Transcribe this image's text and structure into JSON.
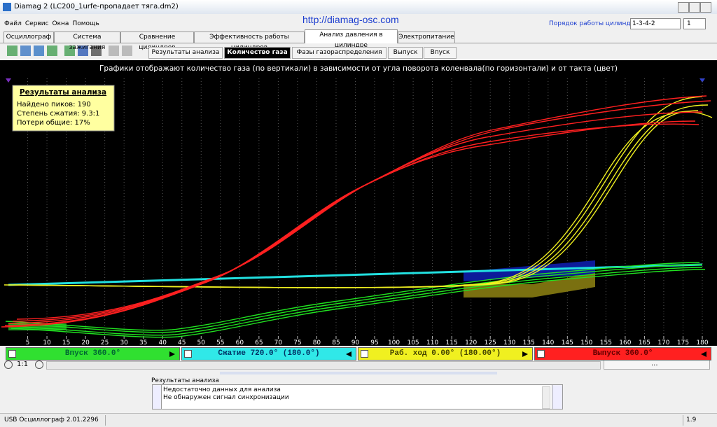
{
  "window": {
    "title": "Diamag 2 (LC200_1urfe-пропадает тяга.dm2)"
  },
  "menu": [
    "Файл",
    "Сервис",
    "Окна",
    "Помощь"
  ],
  "url": "http://diamag-osc.com",
  "cylinder_order": {
    "label": "Порядок работы цилиндров",
    "value": "1-3-4-2",
    "spin": "1"
  },
  "tabs": [
    "Осциллограф",
    "Система зажигания",
    "Сравнение цилиндров",
    "Эффективность работы цилиндров",
    "Анализ давления в цилиндре",
    "Электропитание"
  ],
  "subtabs": [
    "Результаты анализа",
    "Количество газа",
    "Фазы газораспределения",
    "Выпуск",
    "Впуск"
  ],
  "plot": {
    "caption": "Графики отображают количество газа (по вертикали) в зависимости от угла поворота коленвала(по горизонтали) и от такта (цвет)",
    "info": {
      "title": "Результаты анализа",
      "lines": [
        "Найдено пиков: 190",
        "Степень сжатия: 9.3:1",
        "Потери общие: 17%"
      ]
    },
    "xlim": [
      0,
      180
    ],
    "xticks": [
      5,
      10,
      15,
      20,
      25,
      30,
      35,
      40,
      45,
      50,
      55,
      60,
      65,
      70,
      75,
      80,
      85,
      90,
      95,
      100,
      105,
      110,
      115,
      120,
      125,
      130,
      135,
      140,
      145,
      150,
      155,
      160,
      165,
      170,
      175,
      180
    ]
  },
  "phases": [
    "Впуск 360.0°",
    "Сжатие 720.0° (180.0°)",
    "Раб. ход 0.00° (180.00°)",
    "Выпуск 360.0°"
  ],
  "zoom": "1:1",
  "nav": "...",
  "results": {
    "label": "Результаты анализа",
    "lines": [
      "Недостаточно данных для анализа",
      "Не обнаружен сигнал синхронизации"
    ]
  },
  "status": {
    "left": "USB Осциллограф  2.01.2296",
    "right": "1.9"
  }
}
